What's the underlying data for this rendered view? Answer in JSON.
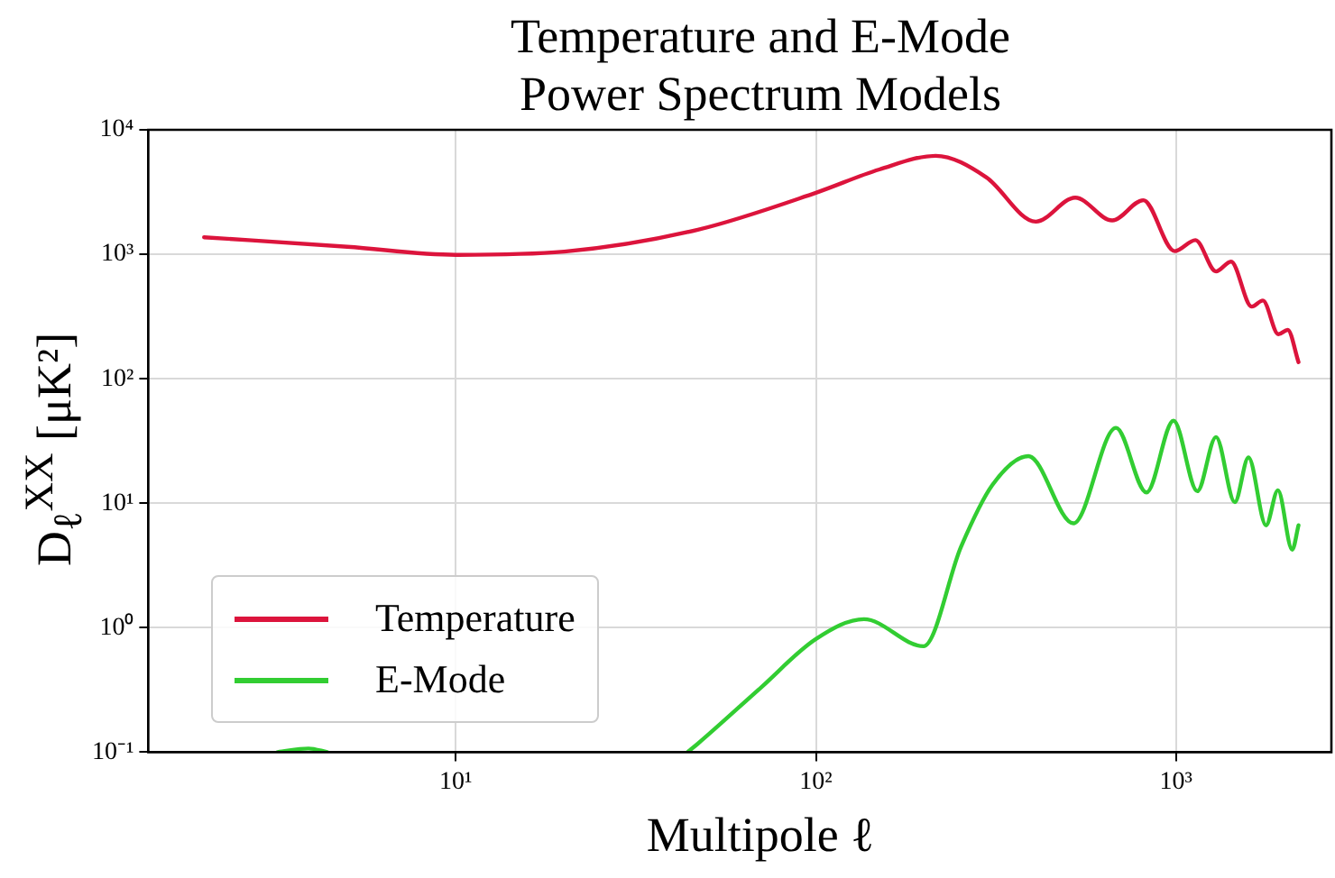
{
  "chart_data": {
    "type": "line",
    "title": "Temperature and E-Mode Power Spectrum Models",
    "xlabel": "Multipole ℓ",
    "ylabel": "D$_{ℓ}$$^{XX}$ [μK²]",
    "log": "xy",
    "grid": true,
    "legend": "bottom left",
    "xlim": [
      1.4,
      2700
    ],
    "ylim": [
      0.1,
      10000
    ],
    "xticks": [
      {
        "value": 10,
        "label": "10¹"
      },
      {
        "value": 100,
        "label": "10²"
      },
      {
        "value": 1000,
        "label": "10³"
      }
    ],
    "yticks": [
      {
        "value": 0.1,
        "label": "10⁻¹"
      },
      {
        "value": 1,
        "label": "10⁰"
      },
      {
        "value": 10,
        "label": "10¹"
      },
      {
        "value": 100,
        "label": "10²"
      },
      {
        "value": 1000,
        "label": "10³"
      },
      {
        "value": 10000,
        "label": "10⁴"
      }
    ],
    "series": [
      {
        "name": "Temperature",
        "color": "#dc143c",
        "x": [
          2,
          5,
          10,
          20,
          47,
          100,
          150,
          215,
          297,
          408,
          525,
          665,
          811,
          991,
          1132,
          1291,
          1421,
          1622,
          1742,
          1924,
          2042,
          2188
        ],
        "values": [
          1370,
          1150,
          990,
          1050,
          1575,
          3120,
          4800,
          6180,
          4160,
          1830,
          2850,
          1870,
          2720,
          1060,
          1300,
          728,
          873,
          380,
          425,
          228,
          247,
          136
        ]
      },
      {
        "name": "E-Mode",
        "color": "#32cd32",
        "x": [
          3.2,
          3.9,
          4.4,
          10,
          44,
          47,
          70,
          100,
          136,
          199,
          253,
          309,
          389,
          519,
          681,
          828,
          984,
          1146,
          1291,
          1456,
          1589,
          1778,
          1918,
          2102,
          2188
        ],
        "values": [
          0.1,
          0.107,
          0.1,
          null,
          0.1,
          0.117,
          0.326,
          0.81,
          1.17,
          0.71,
          4.48,
          14,
          23.9,
          6.9,
          40.3,
          12.2,
          46,
          12.5,
          34,
          10.2,
          23.3,
          6.65,
          12.7,
          4.23,
          6.65
        ]
      }
    ]
  }
}
